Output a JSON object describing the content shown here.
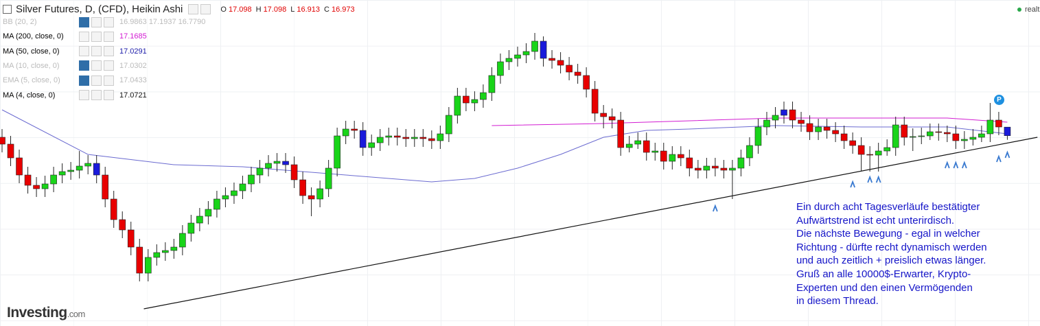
{
  "chart_data": {
    "type": "candlestick",
    "title": "Silver Futures, D, (CFD), Heikin Ashi",
    "ohlc_labels": [
      "O",
      "H",
      "L",
      "C"
    ],
    "legend": [
      {
        "label": "BB (20, 2)",
        "value": "16.9863 17.1937 16.7790",
        "color": "#bbbbbb"
      },
      {
        "label": "MA (200, close, 0)",
        "value": "17.1685",
        "color": "#d21bd2"
      },
      {
        "label": "MA (50, close, 0)",
        "value": "17.0291",
        "color": "#1a1aa8"
      },
      {
        "label": "MA (10, close, 0)",
        "value": "17.0302",
        "color": "#bbbbbb"
      },
      {
        "label": "EMA (5, close, 0)",
        "value": "17.0433",
        "color": "#bbbbbb"
      },
      {
        "label": "MA (4, close, 0)",
        "value": "17.0721",
        "color": "#111111"
      }
    ],
    "realtime_label": "realt",
    "badge": "P",
    "xlim": [
      -0.24,
      120.8
    ],
    "ylim": [
      14.25,
      18.95
    ],
    "up_color": "#19d419",
    "down_color": "#e80000",
    "highlight_color": "#1a1adb",
    "highlighted": [
      11,
      33,
      42,
      63,
      91,
      117
    ],
    "open": [
      16.95,
      16.85,
      16.65,
      16.4,
      16.25,
      16.2,
      16.27,
      16.4,
      16.45,
      16.47,
      16.53,
      16.57,
      16.4,
      16.05,
      15.75,
      15.6,
      15.35,
      14.97,
      15.2,
      15.27,
      15.3,
      15.35,
      15.55,
      15.7,
      15.8,
      15.9,
      16.05,
      16.1,
      16.17,
      16.27,
      16.4,
      16.5,
      16.57,
      16.6,
      16.55,
      16.33,
      16.1,
      16.05,
      16.2,
      16.5,
      16.97,
      17.07,
      17.05,
      16.8,
      16.87,
      16.95,
      16.97,
      16.95,
      16.93,
      16.95,
      16.93,
      16.9,
      17.0,
      17.27,
      17.55,
      17.45,
      17.5,
      17.6,
      17.85,
      18.05,
      18.1,
      18.15,
      18.2,
      18.35,
      18.1,
      18.07,
      18.0,
      17.9,
      17.85,
      17.65,
      17.3,
      17.25,
      17.2,
      16.8,
      16.85,
      16.9,
      16.73,
      16.75,
      16.6,
      16.7,
      16.65,
      16.5,
      16.47,
      16.53,
      16.5,
      16.47,
      16.5,
      16.65,
      16.83,
      17.1,
      17.2,
      17.27,
      17.35,
      17.2,
      17.15,
      17.03,
      17.1,
      17.05,
      17.0,
      16.9,
      16.83,
      16.7,
      16.69,
      16.75,
      16.8,
      17.13,
      16.95,
      16.96,
      16.97,
      17.03,
      17.02,
      17.0,
      16.9,
      16.92,
      16.95,
      17.0,
      17.2,
      17.098
    ],
    "high": [
      17.07,
      16.97,
      16.77,
      16.52,
      16.37,
      16.39,
      16.52,
      16.57,
      16.59,
      16.75,
      16.69,
      16.69,
      16.52,
      16.17,
      15.87,
      15.72,
      15.47,
      15.32,
      15.39,
      15.42,
      15.47,
      15.67,
      15.82,
      15.92,
      16.02,
      16.17,
      16.22,
      16.29,
      16.39,
      16.52,
      16.62,
      16.69,
      16.72,
      16.72,
      16.67,
      16.45,
      16.22,
      16.32,
      16.62,
      17.09,
      17.19,
      17.19,
      17.17,
      16.99,
      17.07,
      17.09,
      17.09,
      17.07,
      17.07,
      17.07,
      17.05,
      17.12,
      17.39,
      17.67,
      17.67,
      17.62,
      17.72,
      17.97,
      18.17,
      18.22,
      18.27,
      18.32,
      18.47,
      18.42,
      18.22,
      18.19,
      18.12,
      18.02,
      17.97,
      17.77,
      17.42,
      17.37,
      17.32,
      16.97,
      17.02,
      17.02,
      16.87,
      16.87,
      16.82,
      16.82,
      16.77,
      16.62,
      16.65,
      16.65,
      16.62,
      16.62,
      16.77,
      16.95,
      17.22,
      17.32,
      17.39,
      17.47,
      17.47,
      17.32,
      17.27,
      17.22,
      17.22,
      17.17,
      17.12,
      17.02,
      16.95,
      16.82,
      16.87,
      16.92,
      17.25,
      17.25,
      17.08,
      17.09,
      17.15,
      17.15,
      17.12,
      17.12,
      17.04,
      17.07,
      17.12,
      17.45,
      17.32,
      17.098
    ],
    "low": [
      16.73,
      16.53,
      16.28,
      16.13,
      16.08,
      16.08,
      16.15,
      16.28,
      16.33,
      16.35,
      16.41,
      16.28,
      15.93,
      15.63,
      15.48,
      15.23,
      14.85,
      14.85,
      15.08,
      15.15,
      15.18,
      15.23,
      15.43,
      15.58,
      15.68,
      15.78,
      15.93,
      15.98,
      16.05,
      16.15,
      16.28,
      16.38,
      16.45,
      16.43,
      16.21,
      15.98,
      15.8,
      15.93,
      16.08,
      16.38,
      16.85,
      16.93,
      16.68,
      16.68,
      16.75,
      16.83,
      16.83,
      16.81,
      16.81,
      16.81,
      16.78,
      16.78,
      16.88,
      17.15,
      17.33,
      17.33,
      17.38,
      17.48,
      17.73,
      17.93,
      17.98,
      18.03,
      18.08,
      17.98,
      17.95,
      17.88,
      17.78,
      17.73,
      17.53,
      17.18,
      17.08,
      17.08,
      16.68,
      16.73,
      16.78,
      16.61,
      16.61,
      16.48,
      16.48,
      16.53,
      16.38,
      16.35,
      16.35,
      16.38,
      16.35,
      16.05,
      16.38,
      16.53,
      16.71,
      16.98,
      17.08,
      17.15,
      17.08,
      17.03,
      16.91,
      16.91,
      16.93,
      16.88,
      16.78,
      16.71,
      16.45,
      16.45,
      16.45,
      16.68,
      16.68,
      16.83,
      16.75,
      16.85,
      16.91,
      16.9,
      16.88,
      16.78,
      16.78,
      16.83,
      16.88,
      16.88,
      16.98,
      16.913
    ],
    "close": [
      16.85,
      16.65,
      16.4,
      16.25,
      16.2,
      16.27,
      16.4,
      16.45,
      16.47,
      16.53,
      16.57,
      16.4,
      16.05,
      15.75,
      15.6,
      15.35,
      14.97,
      15.2,
      15.27,
      15.3,
      15.35,
      15.55,
      15.7,
      15.8,
      15.9,
      16.05,
      16.1,
      16.17,
      16.27,
      16.4,
      16.5,
      16.57,
      16.6,
      16.55,
      16.33,
      16.1,
      16.05,
      16.2,
      16.5,
      16.97,
      17.07,
      17.05,
      16.8,
      16.87,
      16.95,
      16.97,
      16.95,
      16.93,
      16.95,
      16.93,
      16.9,
      17.0,
      17.27,
      17.55,
      17.45,
      17.5,
      17.6,
      17.85,
      18.05,
      18.1,
      18.15,
      18.2,
      18.35,
      18.1,
      18.07,
      18.0,
      17.9,
      17.85,
      17.65,
      17.3,
      17.25,
      17.2,
      16.8,
      16.85,
      16.9,
      16.73,
      16.75,
      16.6,
      16.7,
      16.65,
      16.5,
      16.47,
      16.53,
      16.5,
      16.47,
      16.5,
      16.65,
      16.83,
      17.1,
      17.2,
      17.27,
      17.35,
      17.2,
      17.15,
      17.03,
      17.1,
      17.05,
      17.0,
      16.9,
      16.83,
      16.7,
      16.69,
      16.75,
      16.8,
      17.13,
      16.95,
      16.96,
      16.97,
      17.03,
      17.02,
      17.0,
      16.9,
      16.92,
      16.95,
      17.0,
      17.2,
      17.1,
      16.973
    ],
    "series": [
      {
        "name": "MA (50, close, 0)",
        "color": "#6a6ad0",
        "x": [
          0,
          10,
          20,
          28,
          40,
          50,
          55,
          60,
          65,
          70,
          75,
          80,
          90,
          100,
          110,
          117
        ],
        "values": [
          17.35,
          16.7,
          16.55,
          16.52,
          16.4,
          16.3,
          16.35,
          16.5,
          16.7,
          16.95,
          17.05,
          17.07,
          17.12,
          17.1,
          17.1,
          17.0
        ]
      },
      {
        "name": "MA (200, close, 0)",
        "color": "#d21bd2",
        "x": [
          57,
          70,
          90,
          110,
          117
        ],
        "values": [
          17.12,
          17.15,
          17.23,
          17.23,
          17.17
        ]
      }
    ],
    "trendline": {
      "color": "#111111",
      "x": [
        16.5,
        120.5
      ],
      "values": [
        14.45,
        16.95
      ]
    },
    "arrows": {
      "color": "#3a7ad0",
      "x": [
        83,
        99,
        101,
        102,
        110,
        111,
        112,
        116,
        117
      ],
      "values": [
        15.95,
        16.3,
        16.37,
        16.37,
        16.58,
        16.58,
        16.58,
        16.67,
        16.73
      ]
    },
    "annotation": [
      "Ein durch acht Tagesverläufe bestätigter",
      "Aufwärtstrend ist echt unterirdisch.",
      "Die nächste Bewegung - egal in welcher",
      "Richtung - dürfte recht dynamisch werden",
      "und auch zeitlich + preislich etwas länger.",
      "Gruß an alle 10000$-Erwarter, Krypto-",
      "Experten und den einen Vermögenden",
      "in diesem Thread."
    ],
    "logo": [
      "Investing",
      ".com"
    ]
  }
}
